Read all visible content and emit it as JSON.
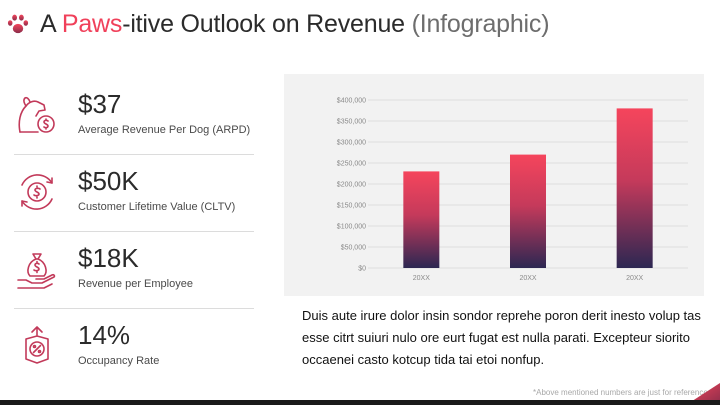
{
  "title": {
    "prefix": "A ",
    "accent": "Paws",
    "rest": "-itive Outlook on Revenue ",
    "sub": "(Infographic)"
  },
  "metrics": [
    {
      "value": "$37",
      "label": "Average Revenue Per Dog (ARPD)",
      "icon": "dog-coin-icon"
    },
    {
      "value": "$50K",
      "label": "Customer Lifetime Value (CLTV)",
      "icon": "dollar-cycle-icon"
    },
    {
      "value": "$18K",
      "label": "Revenue per Employee",
      "icon": "money-bag-hand-icon"
    },
    {
      "value": "14%",
      "label": "Occupancy Rate",
      "icon": "percent-badge-icon"
    }
  ],
  "chart_data": {
    "type": "bar",
    "categories": [
      "20XX",
      "20XX",
      "20XX"
    ],
    "values": [
      230000,
      270000,
      380000
    ],
    "ylim": [
      0,
      400000
    ],
    "yticks": [
      "$0",
      "$50,000",
      "$100,000",
      "$150,000",
      "$200,000",
      "$250,000",
      "$300,000",
      "$350,000",
      "$400,000"
    ],
    "grid": true,
    "colors": {
      "top": "#f5455c",
      "bottom": "#2c2752"
    }
  },
  "body_text": "Duis aute irure dolor insin sondor reprehe poron derit inesto volup tas esse citrt suiuri nulo ore eurt fugat est nulla parati. Excepteur siorito occaenei casto kotcup tida tai etoi nonfup.",
  "footnote": "*Above mentioned numbers are just for reference.",
  "colors": {
    "accent": "#f0405a",
    "icon": "#c23a5a"
  }
}
